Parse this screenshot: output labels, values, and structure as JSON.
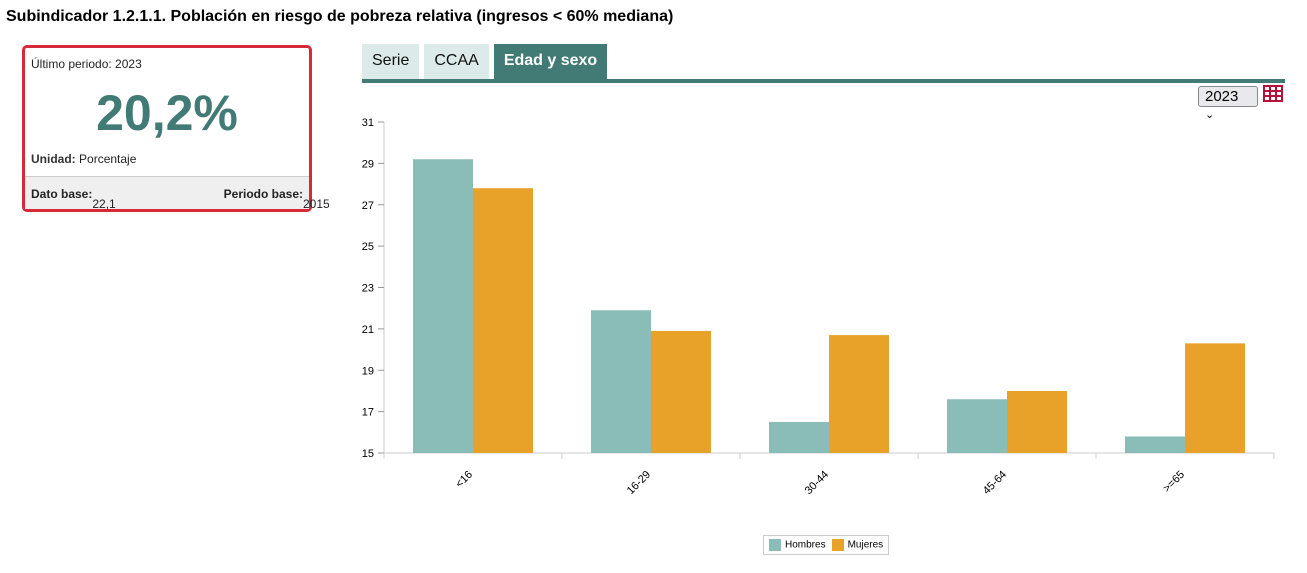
{
  "title": "Subindicador 1.2.1.1. Población en riesgo de pobreza relativa (ingresos < 60% mediana)",
  "card": {
    "last_label": "Último periodo:",
    "last_value": "2023",
    "big_value": "20,2%",
    "unit_label": "Unidad:",
    "unit_value": "Porcentaje",
    "base_label": "Dato base:",
    "base_value": "22,1",
    "period_label": "Periodo base:",
    "period_value": "2015"
  },
  "tabs": [
    {
      "label": "Serie"
    },
    {
      "label": "CCAA"
    },
    {
      "label": "Edad y sexo"
    }
  ],
  "year_select": "2023",
  "colors": {
    "hombres": "#8bbdb8",
    "mujeres": "#e9a229",
    "accent": "#427b76",
    "border": "#d62a3b"
  },
  "chart_data": {
    "type": "bar",
    "title": "",
    "xlabel": "",
    "ylabel": "",
    "ylim": [
      15,
      31
    ],
    "yticks": [
      15,
      17,
      19,
      21,
      23,
      25,
      27,
      29,
      31
    ],
    "categories": [
      "<16",
      "16-29",
      "30-44",
      "45-64",
      ">=65"
    ],
    "series": [
      {
        "name": "Hombres",
        "values": [
          29.2,
          21.9,
          16.5,
          17.6,
          15.8
        ]
      },
      {
        "name": "Mujeres",
        "values": [
          27.8,
          20.9,
          20.7,
          18.0,
          20.3
        ]
      }
    ],
    "legend": "bottom"
  }
}
